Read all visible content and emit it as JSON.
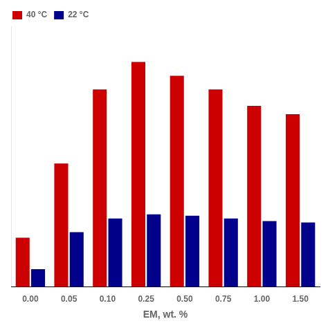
{
  "chart_data": {
    "type": "bar",
    "xlabel": "EM, wt. %",
    "categories": [
      "0.00",
      "0.05",
      "0.10",
      "0.25",
      "0.50",
      "0.75",
      "1.00",
      "1.50"
    ],
    "series": [
      {
        "name": "40 °C",
        "color": "#cc0000",
        "values": [
          1.8,
          4.5,
          7.2,
          8.2,
          7.7,
          7.2,
          6.6,
          6.3
        ]
      },
      {
        "name": "22 °C",
        "color": "#00008b",
        "values": [
          0.65,
          2.0,
          2.5,
          2.65,
          2.6,
          2.5,
          2.4,
          2.35
        ]
      }
    ],
    "ylim": [
      0,
      9.5
    ],
    "yticks": [],
    "tick_labels": "x",
    "grid": false,
    "legend": "upper left"
  }
}
